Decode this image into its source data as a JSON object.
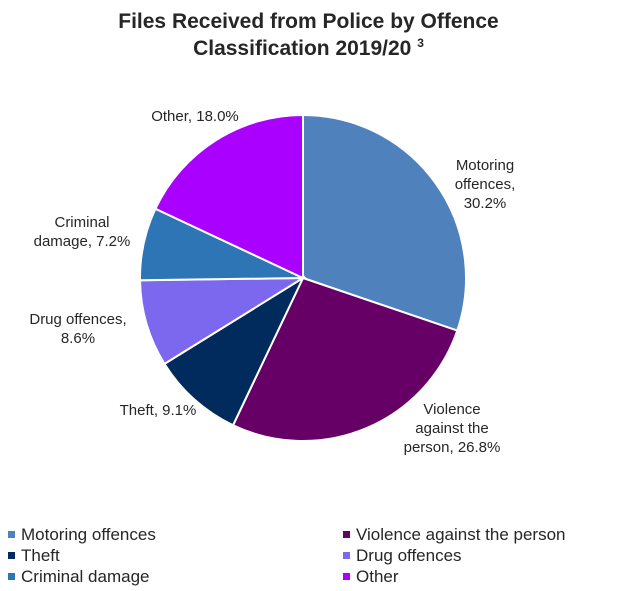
{
  "chart_data": {
    "type": "pie",
    "title": "Files Received from Police by Offence Classification 2019/20",
    "title_line1": "Files Received from Police by Offence",
    "title_line2": "Classification 2019/20",
    "title_footnote": "3",
    "slices": [
      {
        "name": "Motoring offences",
        "value": 30.2,
        "label_lines": [
          "Motoring",
          "offences,",
          "30.2%"
        ],
        "color": "#4F81BD"
      },
      {
        "name": "Violence against the person",
        "value": 26.8,
        "label_lines": [
          "Violence",
          "against the",
          "person, 26.8%"
        ],
        "color": "#660066"
      },
      {
        "name": "Theft",
        "value": 9.1,
        "label_lines": [
          "Theft, 9.1%"
        ],
        "color": "#002B5C"
      },
      {
        "name": "Drug offences",
        "value": 8.6,
        "label_lines": [
          "Drug offences,",
          "8.6%"
        ],
        "color": "#7B68EE"
      },
      {
        "name": "Criminal damage",
        "value": 7.2,
        "label_lines": [
          "Criminal",
          "damage, 7.2%"
        ],
        "color": "#2E75B6"
      },
      {
        "name": "Other",
        "value": 18.0,
        "label_lines": [
          "Other, 18.0%"
        ],
        "color": "#AA00FF"
      }
    ],
    "legend_position": "bottom",
    "start_angle": "12 o'clock, clockwise"
  }
}
